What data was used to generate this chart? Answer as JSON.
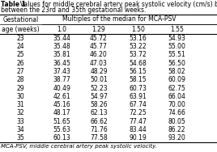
{
  "title_bold": "Table 1",
  "title_rest": "  Values for middle cerebral artery peak systolic velocity (cm/s) based on multiples of the median",
  "title_line2": "between the 23rd and 35th gestational weeks.",
  "col_header_main": "Multiples of the median for MCA-PSV",
  "col_headers": [
    "1.0",
    "1.29",
    "1.50",
    "1.55"
  ],
  "row_header_line1": "Gestational",
  "row_header_line2": "age (weeks)",
  "rows": [
    [
      23,
      35.44,
      45.72,
      53.16,
      54.93
    ],
    [
      24,
      35.48,
      45.77,
      53.22,
      55.0
    ],
    [
      25,
      35.81,
      46.2,
      53.72,
      55.51
    ],
    [
      26,
      36.45,
      47.03,
      54.68,
      56.5
    ],
    [
      27,
      37.43,
      48.29,
      56.15,
      58.02
    ],
    [
      28,
      38.77,
      50.01,
      58.15,
      60.09
    ],
    [
      29,
      40.49,
      52.23,
      60.73,
      62.75
    ],
    [
      30,
      42.61,
      54.97,
      63.91,
      66.04
    ],
    [
      31,
      45.16,
      58.26,
      67.74,
      70.0
    ],
    [
      32,
      48.17,
      62.13,
      72.25,
      74.66
    ],
    [
      33,
      51.65,
      66.62,
      77.47,
      80.05
    ],
    [
      34,
      55.63,
      71.76,
      83.44,
      86.22
    ],
    [
      35,
      60.13,
      77.58,
      90.19,
      93.2
    ]
  ],
  "footnote": "MCA-PSV, middle cerebral artery peak systolic velocity.",
  "bg_color": "#ffffff",
  "line_color": "#000000",
  "text_color": "#000000",
  "font_size": 5.5,
  "title_font_size": 5.5
}
